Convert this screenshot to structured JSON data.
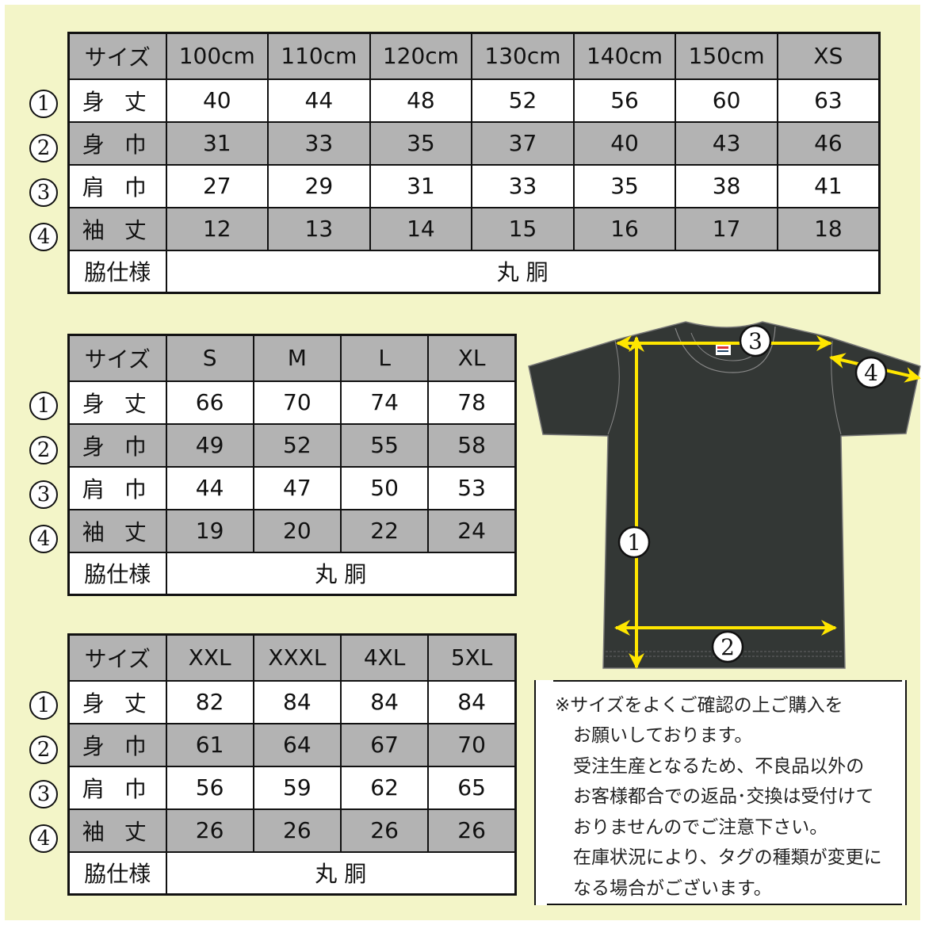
{
  "colors": {
    "background": "#f3f5c8",
    "header_gray": "#b3b3b3",
    "shirt": "#333735",
    "arrow": "#ffe600"
  },
  "markers": [
    "1",
    "2",
    "3",
    "4"
  ],
  "tables": [
    {
      "header": [
        "サイズ",
        "100cm",
        "110cm",
        "120cm",
        "130cm",
        "140cm",
        "150cm",
        "XS"
      ],
      "rows": [
        {
          "label": "身 丈",
          "values": [
            "40",
            "44",
            "48",
            "52",
            "56",
            "60",
            "63"
          ]
        },
        {
          "label": "身 巾",
          "values": [
            "31",
            "33",
            "35",
            "37",
            "40",
            "43",
            "46"
          ]
        },
        {
          "label": "肩 巾",
          "values": [
            "27",
            "29",
            "31",
            "33",
            "35",
            "38",
            "41"
          ]
        },
        {
          "label": "袖 丈",
          "values": [
            "12",
            "13",
            "14",
            "15",
            "16",
            "17",
            "18"
          ]
        }
      ],
      "footer": {
        "label": "脇仕様",
        "value": "丸 胴"
      }
    },
    {
      "header": [
        "サイズ",
        "S",
        "M",
        "L",
        "XL"
      ],
      "rows": [
        {
          "label": "身 丈",
          "values": [
            "66",
            "70",
            "74",
            "78"
          ]
        },
        {
          "label": "身 巾",
          "values": [
            "49",
            "52",
            "55",
            "58"
          ]
        },
        {
          "label": "肩 巾",
          "values": [
            "44",
            "47",
            "50",
            "53"
          ]
        },
        {
          "label": "袖 丈",
          "values": [
            "19",
            "20",
            "22",
            "24"
          ]
        }
      ],
      "footer": {
        "label": "脇仕様",
        "value": "丸 胴"
      }
    },
    {
      "header": [
        "サイズ",
        "XXL",
        "XXXL",
        "4XL",
        "5XL"
      ],
      "rows": [
        {
          "label": "身 丈",
          "values": [
            "82",
            "84",
            "84",
            "84"
          ]
        },
        {
          "label": "身 巾",
          "values": [
            "61",
            "64",
            "67",
            "70"
          ]
        },
        {
          "label": "肩 巾",
          "values": [
            "56",
            "59",
            "62",
            "65"
          ]
        },
        {
          "label": "袖 丈",
          "values": [
            "26",
            "26",
            "26",
            "26"
          ]
        }
      ],
      "footer": {
        "label": "脇仕様",
        "value": "丸 胴"
      }
    }
  ],
  "note": {
    "lines": [
      "※サイズをよくご確認の上ご購入を",
      "　お願いしております。",
      "　受注生産となるため、不良品以外の",
      "　お客様都合での返品･交換は受付けて",
      "　おりませんのでご注意下さい。",
      "　在庫状況により、タグの種類が変更に",
      "　なる場合がございます。"
    ]
  }
}
